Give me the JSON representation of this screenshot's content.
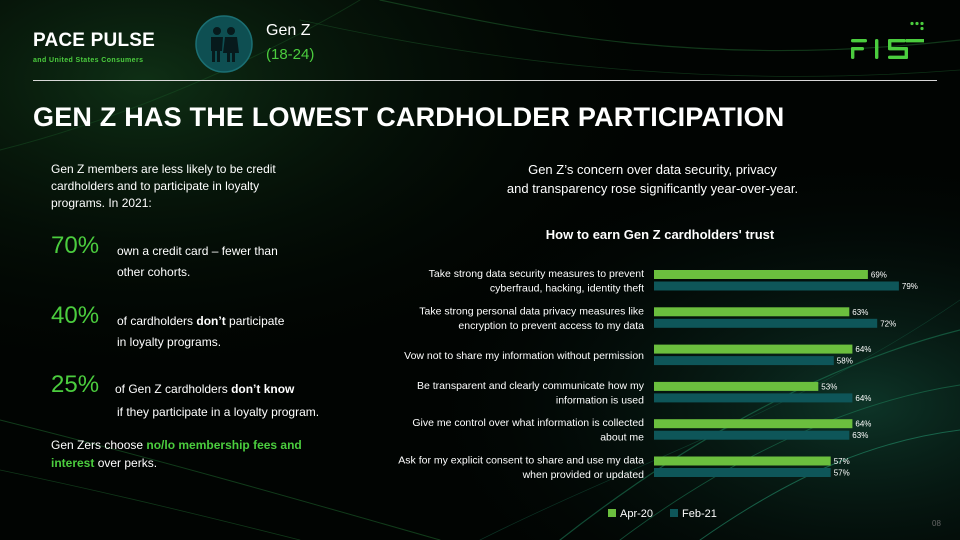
{
  "brand": {
    "title": "PACE PULSE",
    "subtitle": "and United States Consumers"
  },
  "segment": {
    "name": "Gen Z",
    "range": "(18-24)"
  },
  "logo": {
    "text": "FIS",
    "icon": "fis-logo"
  },
  "headline": "GEN Z HAS THE LOWEST CARDHOLDER PARTICIPATION",
  "intro": "Gen Z members are less likely to be credit cardholders and to participate in loyalty programs. In 2021:",
  "stats": [
    {
      "pct": "70%",
      "text_a": "own a credit card – fewer than",
      "text_b": "other cohorts."
    },
    {
      "pct": "40%",
      "text_a_pre": "of cardholders ",
      "text_a_bold": "don’t",
      "text_a_post": " participate",
      "text_b": "in loyalty programs."
    },
    {
      "pct": "25%",
      "text_a_pre": "of Gen Z cardholders ",
      "text_a_bold": "don’t know",
      "text_b": "if they participate in a loyalty program."
    }
  ],
  "closing": {
    "pre": "Gen Zers choose ",
    "highlight": "no/lo membership fees and interest",
    "post": " over perks."
  },
  "concern": {
    "line1": "Gen Z’s concern over data security, privacy",
    "line2": "and transparency rose significantly year-over-year."
  },
  "page_number": "08",
  "colors": {
    "green": "#4bcd3e",
    "teal": "#0e5659",
    "background": "#000000"
  },
  "chart_data": {
    "type": "bar",
    "orientation": "horizontal",
    "title": "How to earn Gen Z cardholders' trust",
    "categories": [
      [
        "Take strong data security measures to prevent",
        "cyberfraud, hacking, identity theft"
      ],
      [
        "Take strong personal data privacy measures like",
        "encryption to prevent access to my data"
      ],
      [
        "Vow not to share my information without permission"
      ],
      [
        "Be transparent and clearly communicate how my",
        "information is used"
      ],
      [
        "Give me control over what information is collected",
        "about me"
      ],
      [
        "Ask for my explicit consent to share and use my data",
        "when provided or updated"
      ]
    ],
    "series": [
      {
        "name": "Apr-20",
        "color": "#6bbf3e",
        "values": [
          69,
          63,
          64,
          53,
          64,
          57
        ]
      },
      {
        "name": "Feb-21",
        "color": "#0e5659",
        "values": [
          79,
          72,
          58,
          64,
          63,
          57
        ]
      }
    ],
    "value_suffix": "%",
    "xlim": [
      0,
      100
    ],
    "legend_position": "bottom",
    "grid": false
  }
}
